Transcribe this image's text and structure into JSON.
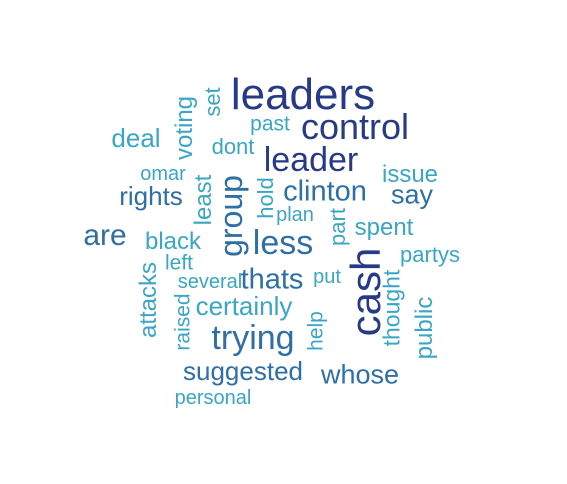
{
  "colors": {
    "dark_navy": "#283a87",
    "mid_blue": "#2e6fa6",
    "teal": "#3aa6c4"
  },
  "words": [
    {
      "text": "leaders",
      "color": "#283a87"
    },
    {
      "text": "control",
      "color": "#283a87"
    },
    {
      "text": "leader",
      "color": "#283a87"
    },
    {
      "text": "cash",
      "color": "#283a87"
    },
    {
      "text": "group",
      "color": "#2e6fa6"
    },
    {
      "text": "less",
      "color": "#2e6fa6"
    },
    {
      "text": "clinton",
      "color": "#2e6fa6"
    },
    {
      "text": "trying",
      "color": "#2e6fa6"
    },
    {
      "text": "are",
      "color": "#2e6fa6"
    },
    {
      "text": "thats",
      "color": "#2e6fa6"
    },
    {
      "text": "whose",
      "color": "#2e6fa6"
    },
    {
      "text": "suggested",
      "color": "#2e6fa6"
    },
    {
      "text": "rights",
      "color": "#2e6fa6"
    },
    {
      "text": "say",
      "color": "#2e6fa6"
    },
    {
      "text": "deal",
      "color": "#3aa6c4"
    },
    {
      "text": "voting",
      "color": "#3aa6c4"
    },
    {
      "text": "set",
      "color": "#3aa6c4"
    },
    {
      "text": "past",
      "color": "#3aa6c4"
    },
    {
      "text": "omar",
      "color": "#3aa6c4"
    },
    {
      "text": "dont",
      "color": "#3aa6c4"
    },
    {
      "text": "issue",
      "color": "#3aa6c4"
    },
    {
      "text": "least",
      "color": "#3aa6c4"
    },
    {
      "text": "hold",
      "color": "#3aa6c4"
    },
    {
      "text": "plan",
      "color": "#3aa6c4"
    },
    {
      "text": "part",
      "color": "#3aa6c4"
    },
    {
      "text": "spent",
      "color": "#3aa6c4"
    },
    {
      "text": "black",
      "color": "#3aa6c4"
    },
    {
      "text": "partys",
      "color": "#3aa6c4"
    },
    {
      "text": "left",
      "color": "#3aa6c4"
    },
    {
      "text": "attacks",
      "color": "#3aa6c4"
    },
    {
      "text": "several",
      "color": "#3aa6c4"
    },
    {
      "text": "put",
      "color": "#3aa6c4"
    },
    {
      "text": "certainly",
      "color": "#3aa6c4"
    },
    {
      "text": "raised",
      "color": "#3aa6c4"
    },
    {
      "text": "help",
      "color": "#3aa6c4"
    },
    {
      "text": "thought",
      "color": "#3aa6c4"
    },
    {
      "text": "public",
      "color": "#3aa6c4"
    },
    {
      "text": "personal",
      "color": "#3aa6c4"
    }
  ]
}
